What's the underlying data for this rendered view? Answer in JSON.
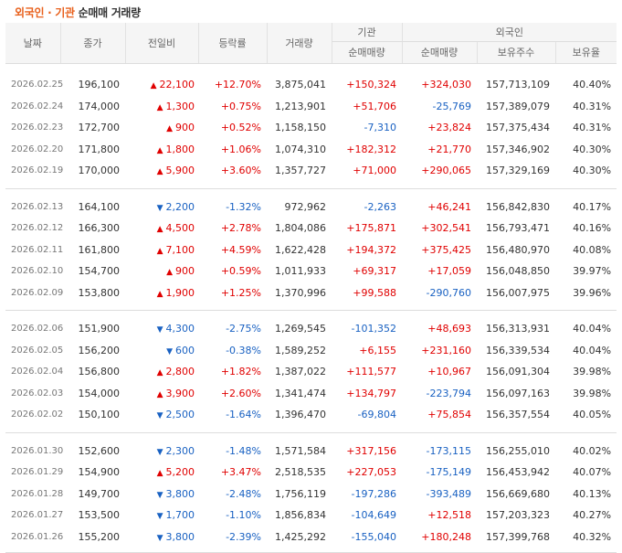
{
  "title": {
    "accent": "외국인 · 기관",
    "rest": " 순매매 거래량"
  },
  "columns": {
    "date": "날짜",
    "close": "종가",
    "change": "전일비",
    "rate": "등락률",
    "volume": "거래량",
    "inst_group": "기관",
    "inst_net": "순매매량",
    "foreign_group": "외국인",
    "foreign_net": "순매매량",
    "holdings": "보유주수",
    "ratio": "보유율"
  },
  "colors": {
    "up": "#e00000",
    "down": "#1961c2",
    "title_accent": "#e8601c"
  },
  "groups": [
    [
      {
        "date": "2026.02.25",
        "close": "196,100",
        "dir": "up",
        "change": "22,100",
        "rate": "+12.70%",
        "volume": "3,875,041",
        "inst": "+150,324",
        "foreign": "+324,030",
        "holdings": "157,713,109",
        "ratio": "40.40%"
      },
      {
        "date": "2026.02.24",
        "close": "174,000",
        "dir": "up",
        "change": "1,300",
        "rate": "+0.75%",
        "volume": "1,213,901",
        "inst": "+51,706",
        "foreign": "-25,769",
        "holdings": "157,389,079",
        "ratio": "40.31%"
      },
      {
        "date": "2026.02.23",
        "close": "172,700",
        "dir": "up",
        "change": "900",
        "rate": "+0.52%",
        "volume": "1,158,150",
        "inst": "-7,310",
        "foreign": "+23,824",
        "holdings": "157,375,434",
        "ratio": "40.31%"
      },
      {
        "date": "2026.02.20",
        "close": "171,800",
        "dir": "up",
        "change": "1,800",
        "rate": "+1.06%",
        "volume": "1,074,310",
        "inst": "+182,312",
        "foreign": "+21,770",
        "holdings": "157,346,902",
        "ratio": "40.30%"
      },
      {
        "date": "2026.02.19",
        "close": "170,000",
        "dir": "up",
        "change": "5,900",
        "rate": "+3.60%",
        "volume": "1,357,727",
        "inst": "+71,000",
        "foreign": "+290,065",
        "holdings": "157,329,169",
        "ratio": "40.30%"
      }
    ],
    [
      {
        "date": "2026.02.13",
        "close": "164,100",
        "dir": "down",
        "change": "2,200",
        "rate": "-1.32%",
        "volume": "972,962",
        "inst": "-2,263",
        "foreign": "+46,241",
        "holdings": "156,842,830",
        "ratio": "40.17%"
      },
      {
        "date": "2026.02.12",
        "close": "166,300",
        "dir": "up",
        "change": "4,500",
        "rate": "+2.78%",
        "volume": "1,804,086",
        "inst": "+175,871",
        "foreign": "+302,541",
        "holdings": "156,793,471",
        "ratio": "40.16%"
      },
      {
        "date": "2026.02.11",
        "close": "161,800",
        "dir": "up",
        "change": "7,100",
        "rate": "+4.59%",
        "volume": "1,622,428",
        "inst": "+194,372",
        "foreign": "+375,425",
        "holdings": "156,480,970",
        "ratio": "40.08%"
      },
      {
        "date": "2026.02.10",
        "close": "154,700",
        "dir": "up",
        "change": "900",
        "rate": "+0.59%",
        "volume": "1,011,933",
        "inst": "+69,317",
        "foreign": "+17,059",
        "holdings": "156,048,850",
        "ratio": "39.97%"
      },
      {
        "date": "2026.02.09",
        "close": "153,800",
        "dir": "up",
        "change": "1,900",
        "rate": "+1.25%",
        "volume": "1,370,996",
        "inst": "+99,588",
        "foreign": "-290,760",
        "holdings": "156,007,975",
        "ratio": "39.96%"
      }
    ],
    [
      {
        "date": "2026.02.06",
        "close": "151,900",
        "dir": "down",
        "change": "4,300",
        "rate": "-2.75%",
        "volume": "1,269,545",
        "inst": "-101,352",
        "foreign": "+48,693",
        "holdings": "156,313,931",
        "ratio": "40.04%"
      },
      {
        "date": "2026.02.05",
        "close": "156,200",
        "dir": "down",
        "change": "600",
        "rate": "-0.38%",
        "volume": "1,589,252",
        "inst": "+6,155",
        "foreign": "+231,160",
        "holdings": "156,339,534",
        "ratio": "40.04%"
      },
      {
        "date": "2026.02.04",
        "close": "156,800",
        "dir": "up",
        "change": "2,800",
        "rate": "+1.82%",
        "volume": "1,387,022",
        "inst": "+111,577",
        "foreign": "+10,967",
        "holdings": "156,091,304",
        "ratio": "39.98%"
      },
      {
        "date": "2026.02.03",
        "close": "154,000",
        "dir": "up",
        "change": "3,900",
        "rate": "+2.60%",
        "volume": "1,341,474",
        "inst": "+134,797",
        "foreign": "-223,794",
        "holdings": "156,097,163",
        "ratio": "39.98%"
      },
      {
        "date": "2026.02.02",
        "close": "150,100",
        "dir": "down",
        "change": "2,500",
        "rate": "-1.64%",
        "volume": "1,396,470",
        "inst": "-69,804",
        "foreign": "+75,854",
        "holdings": "156,357,554",
        "ratio": "40.05%"
      }
    ],
    [
      {
        "date": "2026.01.30",
        "close": "152,600",
        "dir": "down",
        "change": "2,300",
        "rate": "-1.48%",
        "volume": "1,571,584",
        "inst": "+317,156",
        "foreign": "-173,115",
        "holdings": "156,255,010",
        "ratio": "40.02%"
      },
      {
        "date": "2026.01.29",
        "close": "154,900",
        "dir": "up",
        "change": "5,200",
        "rate": "+3.47%",
        "volume": "2,518,535",
        "inst": "+227,053",
        "foreign": "-175,149",
        "holdings": "156,453,942",
        "ratio": "40.07%"
      },
      {
        "date": "2026.01.28",
        "close": "149,700",
        "dir": "down",
        "change": "3,800",
        "rate": "-2.48%",
        "volume": "1,756,119",
        "inst": "-197,286",
        "foreign": "-393,489",
        "holdings": "156,669,680",
        "ratio": "40.13%"
      },
      {
        "date": "2026.01.27",
        "close": "153,500",
        "dir": "down",
        "change": "1,700",
        "rate": "-1.10%",
        "volume": "1,856,834",
        "inst": "-104,649",
        "foreign": "+12,518",
        "holdings": "157,203,323",
        "ratio": "40.27%"
      },
      {
        "date": "2026.01.26",
        "close": "155,200",
        "dir": "down",
        "change": "3,800",
        "rate": "-2.39%",
        "volume": "1,425,292",
        "inst": "-155,040",
        "foreign": "+180,248",
        "holdings": "157,399,768",
        "ratio": "40.32%"
      }
    ]
  ]
}
